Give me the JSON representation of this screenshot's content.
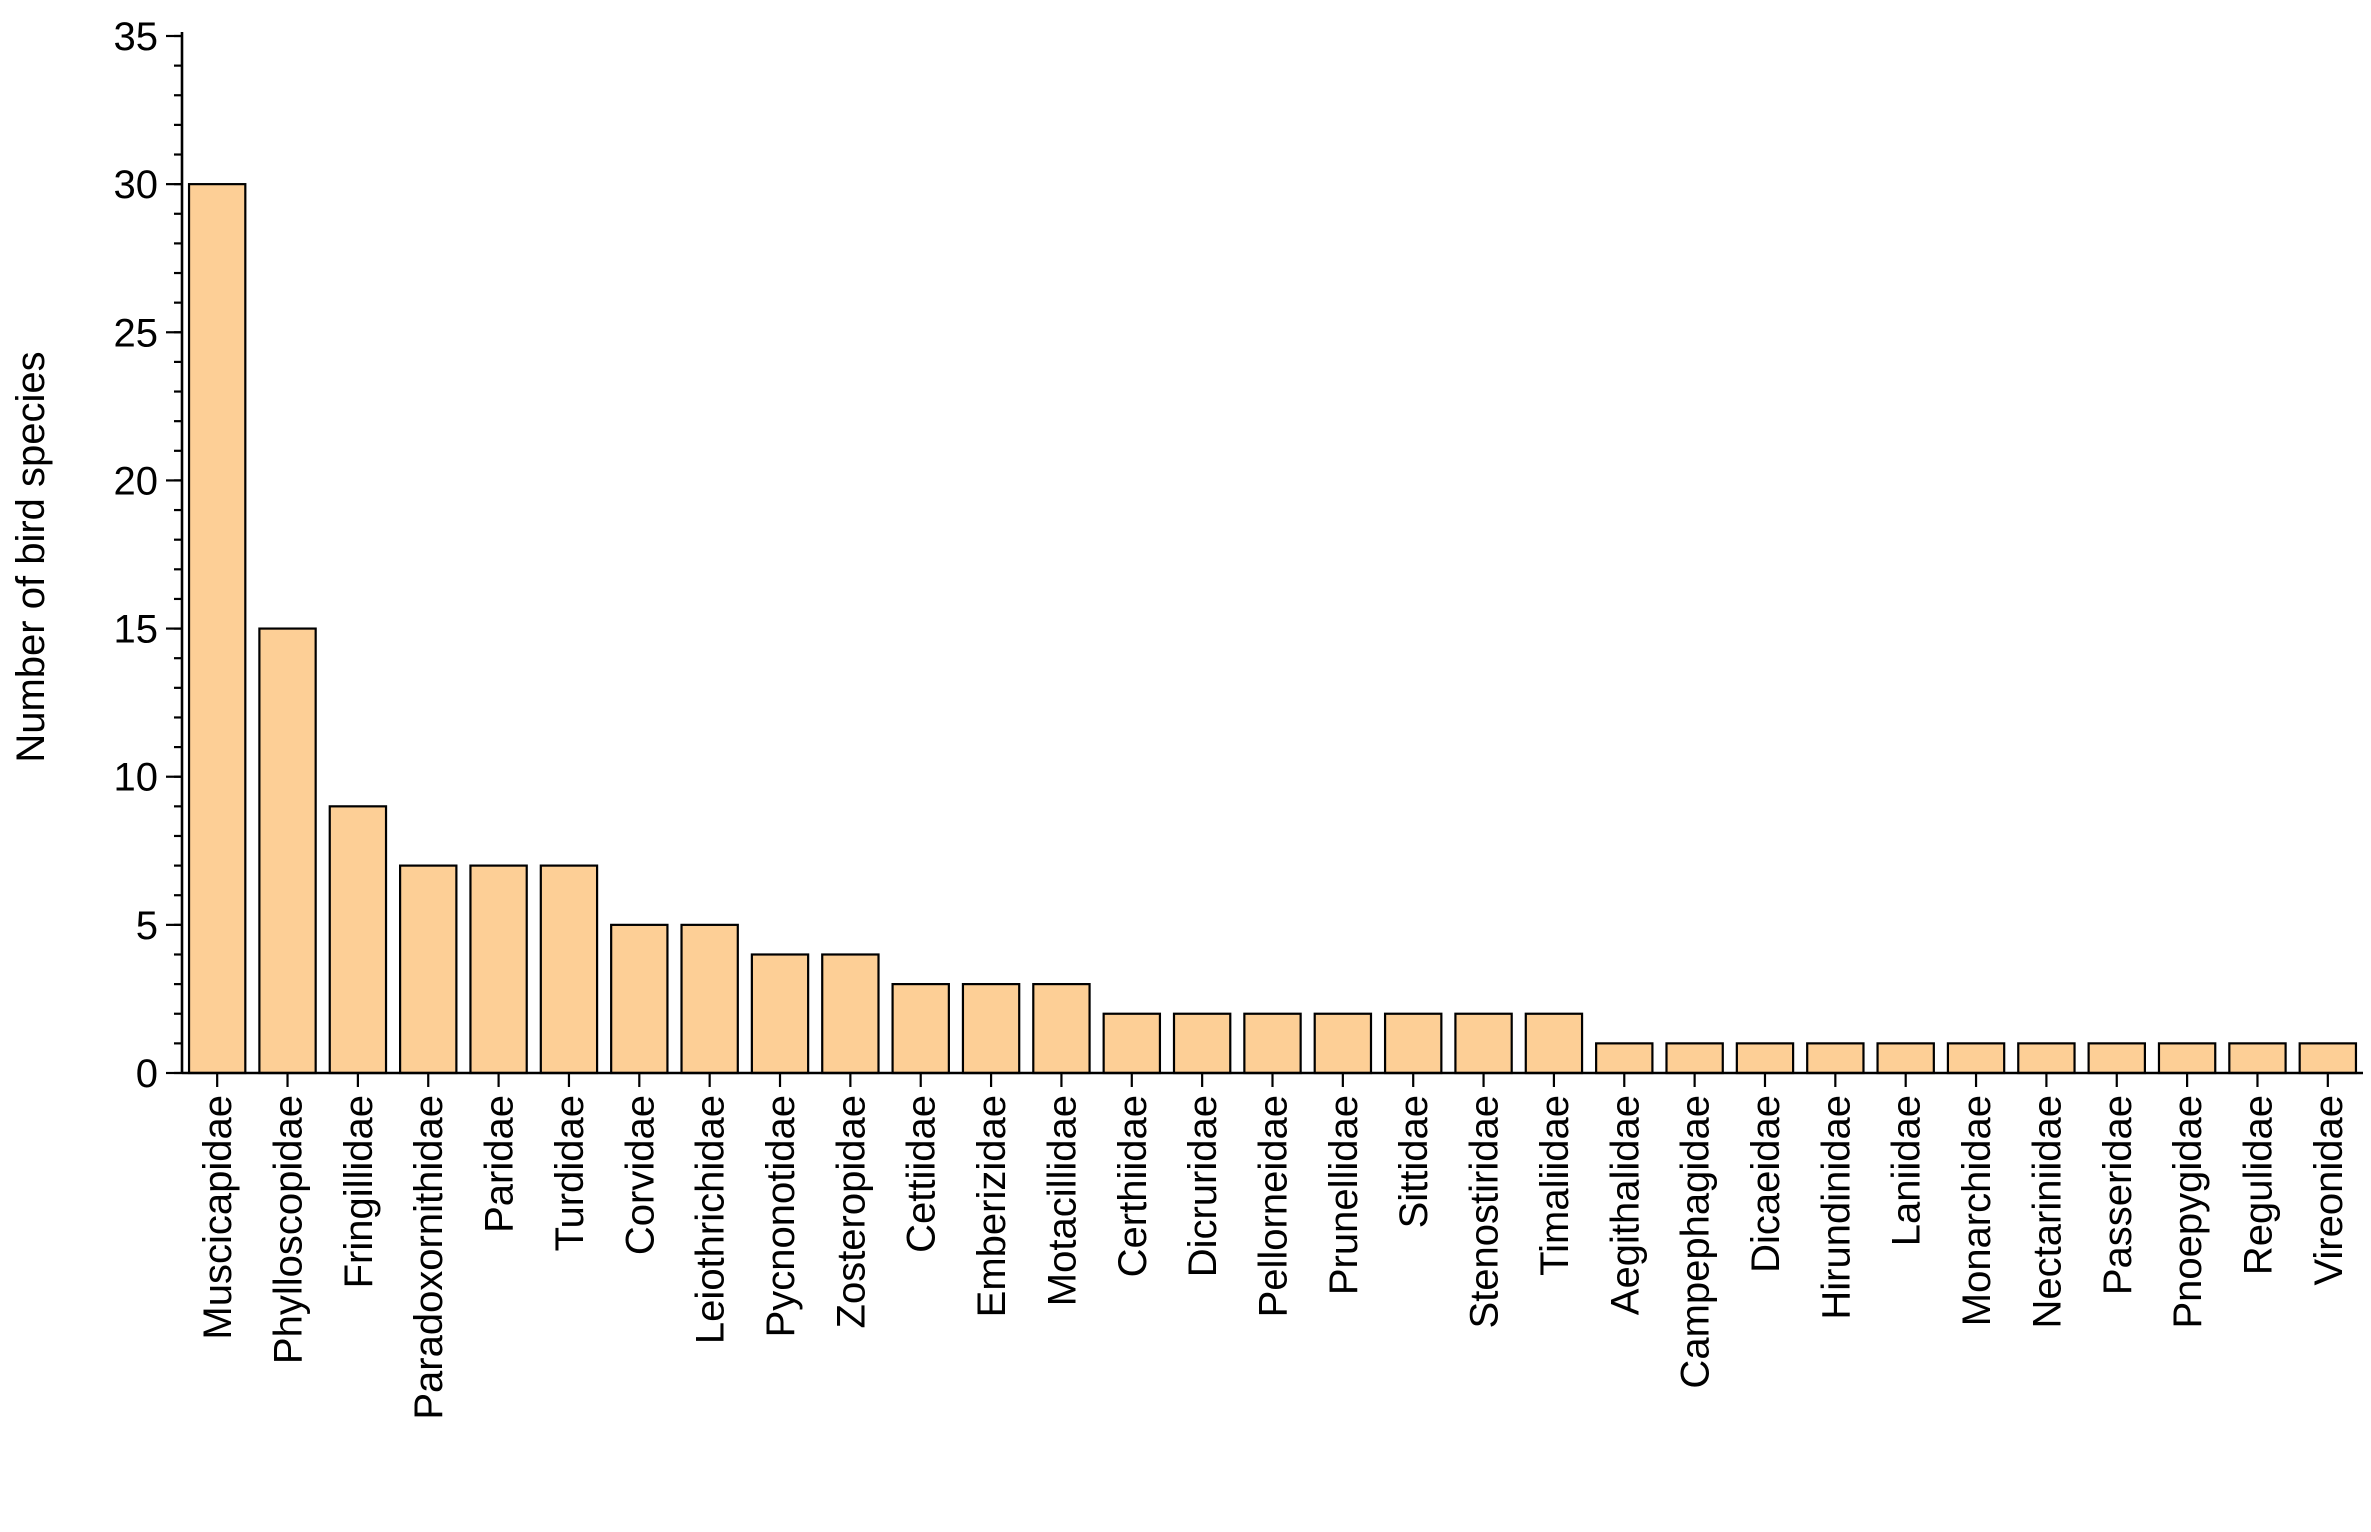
{
  "chart_data": {
    "type": "bar",
    "title": "",
    "xlabel": "",
    "ylabel": "Number of bird species",
    "ylim": [
      0,
      35
    ],
    "y_major_ticks": [
      0,
      5,
      10,
      15,
      20,
      25,
      30,
      35
    ],
    "y_tick_labels": [
      "0",
      "5",
      "10",
      "15",
      "20",
      "25",
      "30",
      "35"
    ],
    "y_minor_step": 1,
    "grid": false,
    "legend": "none",
    "bar_color": "#FDCF96",
    "bar_edge_color": "#000000",
    "categories": [
      "Muscicapidae",
      "Phylloscopidae",
      "Fringillidae",
      "Paradoxornithidae",
      "Paridae",
      "Turdidae",
      "Corvidae",
      "Leiothrichidae",
      "Pycnonotidae",
      "Zosteropidae",
      "Cettiidae",
      "Emberizidae",
      "Motacillidae",
      "Certhiidae",
      "Dicruridae",
      "Pellorneidae",
      "Prunellidae",
      "Sittidae",
      "Stenostiridae",
      "Timaliidae",
      "Aegithalidae",
      "Campephagidae",
      "Dicaeidae",
      "Hirundinidae",
      "Laniidae",
      "Monarchidae",
      "Nectariniidae",
      "Passeridae",
      "Pnoepygidae",
      "Regulidae",
      "Vireonidae"
    ],
    "values": [
      30,
      15,
      9,
      7,
      7,
      7,
      5,
      5,
      4,
      4,
      3,
      3,
      3,
      2,
      2,
      2,
      2,
      2,
      2,
      2,
      1,
      1,
      1,
      1,
      1,
      1,
      1,
      1,
      1,
      1,
      1
    ]
  }
}
